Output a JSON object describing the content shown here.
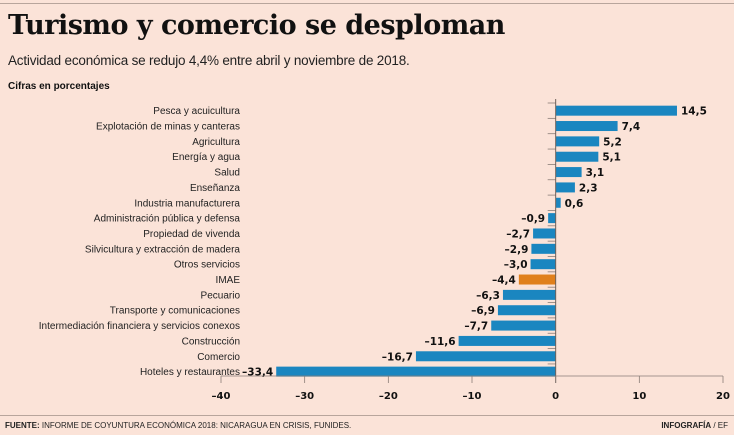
{
  "header": {
    "title": "Turismo y comercio se desploman",
    "subtitle": "Actividad económica se redujo 4,4% entre abril y noviembre de 2018.",
    "unit_label": "Cifras en porcentajes"
  },
  "footer": {
    "source_label": "FUENTE:",
    "source_text": " INFORME DE COYUNTURA ECONÓMICA 2018: NICARAGUA EN CRISIS, FUNIDES.",
    "credit_label": "INFOGRAFÍA",
    "credit_text": " / EF"
  },
  "colors": {
    "bar": "#1a86c0",
    "highlight": "#e0801c",
    "background": "#fbe3d8"
  },
  "chart_data": {
    "type": "bar",
    "orientation": "horizontal",
    "title": "Turismo y comercio se desploman",
    "subtitle": "Actividad económica se redujo 4,4% entre abril y noviembre de 2018.",
    "xlabel": "",
    "ylabel": "Cifras en porcentajes",
    "xlim": [
      -40,
      20
    ],
    "xticks": [
      -40,
      -30,
      -20,
      -10,
      0,
      10,
      20
    ],
    "xtick_labels": [
      "–40",
      "–30",
      "–20",
      "–10",
      "0",
      "10",
      "20"
    ],
    "grid": false,
    "legend": "none",
    "highlight_category": "IMAE",
    "categories": [
      "Pesca y acuicultura",
      "Explotación de minas y canteras",
      "Agricultura",
      "Energía y agua",
      "Salud",
      "Enseñanza",
      "Industria manufacturera",
      "Administración pública y defensa",
      "Propiedad de vivenda",
      "Silvicultura y extracción de madera",
      "Otros servicios",
      "IMAE",
      "Pecuario",
      "Transporte y comunicaciones",
      "Intermediación financiera y servicios conexos",
      "Construcción",
      "Comercio",
      "Hoteles y restaurantes"
    ],
    "values": [
      14.5,
      7.4,
      5.2,
      5.1,
      3.1,
      2.3,
      0.6,
      -0.9,
      -2.7,
      -2.9,
      -3.0,
      -4.4,
      -6.3,
      -6.9,
      -7.7,
      -11.6,
      -16.7,
      -33.4
    ],
    "value_labels": [
      "14,5",
      "7,4",
      "5,2",
      "5,1",
      "3,1",
      "2,3",
      "0,6",
      "–0,9",
      "–2,7",
      "–2,9",
      "–3,0",
      "–4,4",
      "–6,3",
      "–6,9",
      "–7,7",
      "–11,6",
      "–16,7",
      "–33,4"
    ]
  }
}
